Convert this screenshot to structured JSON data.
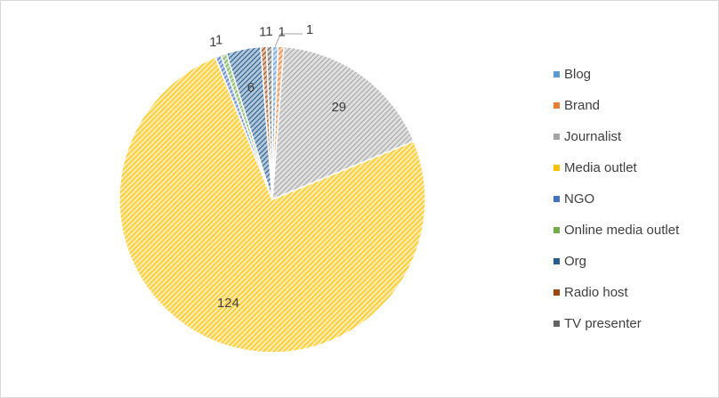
{
  "chart_data": {
    "type": "pie",
    "categories": [
      "Blog",
      "Brand",
      "Journalist",
      "Media outlet",
      "NGO",
      "Online media outlet",
      "Org",
      "Radio host",
      "TV presenter"
    ],
    "values": [
      1,
      1,
      29,
      124,
      1,
      1,
      6,
      1,
      1
    ],
    "colors": [
      "#5b9bd5",
      "#ed7d31",
      "#a5a5a5",
      "#ffc000",
      "#4472c4",
      "#70ad47",
      "#255e91",
      "#9e480e",
      "#636363"
    ],
    "legend": "right"
  }
}
